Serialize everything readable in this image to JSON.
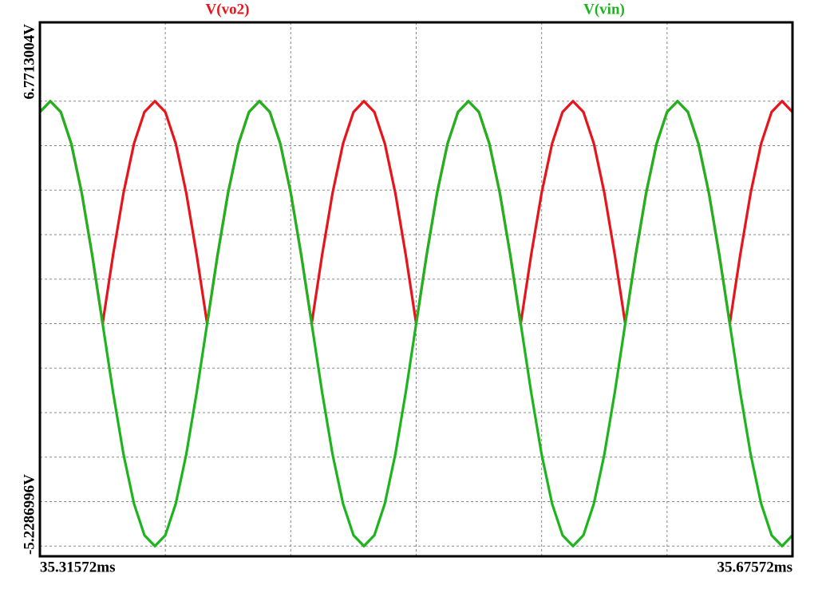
{
  "chart_data": {
    "type": "line",
    "x": [
      35.31572,
      35.32072,
      35.32572,
      35.33072,
      35.33572,
      35.34072,
      35.34572,
      35.35072,
      35.35572,
      35.36072,
      35.36572,
      35.37072,
      35.37572,
      35.38072,
      35.38572,
      35.39072,
      35.39572,
      35.40072,
      35.40572,
      35.41072,
      35.41572,
      35.42072,
      35.42572,
      35.43072,
      35.43572,
      35.44072,
      35.44572,
      35.45072,
      35.45572,
      35.46072,
      35.46572,
      35.47072,
      35.47572,
      35.48072,
      35.48572,
      35.49072,
      35.49572,
      35.50072,
      35.50572,
      35.51072,
      35.51572,
      35.52072,
      35.52572,
      35.53072,
      35.53572,
      35.54072,
      35.54572,
      35.55072,
      35.55572,
      35.56072,
      35.56572,
      35.57072,
      35.57572,
      35.58072,
      35.58572,
      35.59072,
      35.59572,
      35.60072,
      35.60572,
      35.61072,
      35.61572,
      35.62072,
      35.62572,
      35.63072,
      35.63572,
      35.64072,
      35.64572,
      35.65072,
      35.65572,
      35.66072,
      35.66572,
      35.67072,
      35.67572
    ],
    "series": [
      {
        "name": "V(vo2)",
        "color": "#e8141b",
        "values": [
          4.755,
          5,
          4.755,
          4.045,
          2.939,
          1.545,
          0,
          1.545,
          2.939,
          4.045,
          4.755,
          5,
          4.755,
          4.045,
          2.939,
          1.545,
          0,
          1.545,
          2.939,
          4.045,
          4.755,
          5,
          4.755,
          4.045,
          2.939,
          1.545,
          0,
          1.545,
          2.939,
          4.045,
          4.755,
          5,
          4.755,
          4.045,
          2.939,
          1.545,
          0,
          1.545,
          2.939,
          4.045,
          4.755,
          5,
          4.755,
          4.045,
          2.939,
          1.545,
          0,
          1.545,
          2.939,
          4.045,
          4.755,
          5,
          4.755,
          4.045,
          2.939,
          1.545,
          0,
          1.545,
          2.939,
          4.045,
          4.755,
          5,
          4.755,
          4.045,
          2.939,
          1.545,
          0,
          1.545,
          2.939,
          4.045,
          4.755,
          5,
          4.755
        ]
      },
      {
        "name": "V(vin)",
        "color": "#1eb41e",
        "values": [
          4.755,
          5,
          4.755,
          4.045,
          2.939,
          1.545,
          0,
          -1.545,
          -2.939,
          -4.045,
          -4.755,
          -5,
          -4.755,
          -4.045,
          -2.939,
          -1.545,
          0,
          1.545,
          2.939,
          4.045,
          4.755,
          5,
          4.755,
          4.045,
          2.939,
          1.545,
          0,
          -1.545,
          -2.939,
          -4.045,
          -4.755,
          -5,
          -4.755,
          -4.045,
          -2.939,
          -1.545,
          0,
          1.545,
          2.939,
          4.045,
          4.755,
          5,
          4.755,
          4.045,
          2.939,
          1.545,
          0,
          -1.545,
          -2.939,
          -4.045,
          -4.755,
          -5,
          -4.755,
          -4.045,
          -2.939,
          -1.545,
          0,
          1.545,
          2.939,
          4.045,
          4.755,
          5,
          4.755,
          4.045,
          2.939,
          1.545,
          0,
          -1.545,
          -2.939,
          -4.045,
          -4.755,
          -5,
          -4.755
        ]
      }
    ],
    "xlim": [
      35.31572,
      35.67572
    ],
    "xticks": [
      {
        "value": 35.31572,
        "label": "35.31572ms"
      },
      {
        "value": 35.67572,
        "label": "35.67572ms"
      }
    ],
    "xgrid": [
      35.37572,
      35.43572,
      35.49572,
      35.55572,
      35.61572
    ],
    "ylim": [
      -5.2286996,
      6.7713004
    ],
    "yticks": [
      {
        "value": -5.2286996,
        "label": "-5.2286996V"
      },
      {
        "value": 6.7713004,
        "label": "6.7713004V"
      }
    ],
    "ygrid": [
      -5,
      -4,
      -3,
      -2,
      -1,
      0,
      1,
      2,
      3,
      4,
      5
    ]
  }
}
